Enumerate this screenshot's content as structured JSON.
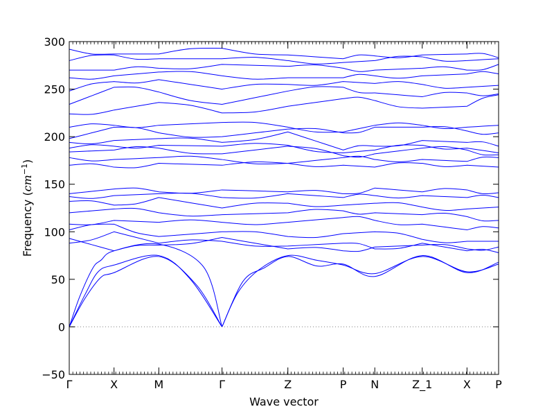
{
  "chart_data": {
    "type": "line",
    "title": "",
    "xlabel": "Wave vector",
    "ylabel": "Frequency",
    "ylabel_unit_symbol": "cm",
    "ylabel_unit_exponent": "−1",
    "ylim": [
      -50,
      300
    ],
    "yticks": [
      -50,
      0,
      50,
      100,
      150,
      200,
      250,
      300
    ],
    "ytick_labels": [
      "−50",
      "0",
      "50",
      "100",
      "150",
      "200",
      "250",
      "300"
    ],
    "zero_line": {
      "y": 0,
      "style": "dotted",
      "color": "#808080"
    },
    "grid": false,
    "legend": "none",
    "line_color": "#0000ff",
    "high_symmetry_points": [
      {
        "label": "Γ",
        "x": 0.0
      },
      {
        "label": "X",
        "x": 0.85
      },
      {
        "label": "M",
        "x": 1.7
      },
      {
        "label": "Γ",
        "x": 2.9
      },
      {
        "label": "Z",
        "x": 4.15
      },
      {
        "label": "P",
        "x": 5.2
      },
      {
        "label": "N",
        "x": 5.8
      },
      {
        "label": "Z_1",
        "x": 6.7
      },
      {
        "label": "X",
        "x": 7.55
      },
      {
        "label": "P",
        "x": 8.15
      }
    ],
    "acoustic_branches": [
      {
        "name": "",
        "x": [
          0.0,
          0.3,
          0.55,
          0.85,
          1.7,
          2.3,
          2.9
        ],
        "y": [
          0,
          34,
          58,
          65,
          75,
          50,
          0
        ]
      },
      {
        "name": "",
        "x": [
          0.0,
          0.3,
          0.6,
          0.85,
          1.7,
          2.4,
          2.9
        ],
        "y": [
          0,
          30,
          52,
          57,
          74,
          45,
          0
        ]
      },
      {
        "name": "",
        "x": [
          0.0,
          0.2,
          0.45,
          0.6,
          0.85,
          1.7,
          2.55,
          2.9
        ],
        "y": [
          0,
          32,
          62,
          70,
          80,
          87,
          63,
          0
        ]
      },
      {
        "name": "",
        "x": [
          2.9,
          3.2,
          3.6,
          4.15,
          4.7,
          5.2,
          5.8,
          6.7,
          7.55,
          8.15
        ],
        "y": [
          0,
          36,
          60,
          75,
          70,
          65,
          56,
          74,
          58,
          66
        ]
      },
      {
        "name": "",
        "x": [
          2.9,
          3.3,
          3.7,
          4.15,
          4.7,
          5.2,
          5.8,
          6.7,
          7.55,
          8.15
        ],
        "y": [
          0,
          48,
          62,
          74,
          64,
          66,
          53,
          75,
          57,
          68
        ]
      }
    ],
    "optical_branches": [
      {
        "name": "",
        "values": [
          88,
          100,
          88,
          90,
          85,
          88,
          82,
          88,
          80,
          78
        ]
      },
      {
        "name": "",
        "values": [
          93,
          80,
          86,
          94,
          82,
          80,
          84,
          86,
          82,
          84
        ]
      },
      {
        "name": "",
        "values": [
          102,
          108,
          95,
          100,
          95,
          98,
          100,
          92,
          90,
          90
        ]
      },
      {
        "name": "",
        "values": [
          108,
          112,
          110,
          110,
          110,
          115,
          112,
          108,
          102,
          104
        ]
      },
      {
        "name": "",
        "values": [
          120,
          124,
          120,
          118,
          120,
          122,
          120,
          118,
          116,
          112
        ]
      },
      {
        "name": "",
        "values": [
          132,
          128,
          136,
          125,
          130,
          128,
          130,
          126,
          124,
          126
        ]
      },
      {
        "name": "",
        "values": [
          137,
          138,
          140,
          136,
          140,
          136,
          138,
          138,
          136,
          136
        ]
      },
      {
        "name": "",
        "values": [
          140,
          145,
          142,
          144,
          142,
          140,
          146,
          142,
          144,
          141
        ]
      },
      {
        "name": "",
        "values": [
          170,
          168,
          172,
          170,
          172,
          170,
          168,
          172,
          170,
          168
        ]
      },
      {
        "name": "",
        "values": [
          178,
          176,
          178,
          176,
          172,
          178,
          176,
          176,
          174,
          178
        ]
      },
      {
        "name": "",
        "values": [
          184,
          186,
          188,
          182,
          190,
          180,
          182,
          188,
          186,
          181
        ]
      },
      {
        "name": "",
        "values": [
          188,
          190,
          191,
          190,
          191,
          183,
          186,
          191,
          188,
          183
        ]
      },
      {
        "name": "",
        "values": [
          194,
          196,
          198,
          194,
          205,
          186,
          190,
          196,
          194,
          190
        ]
      },
      {
        "name": "",
        "values": [
          198,
          210,
          204,
          200,
          208,
          204,
          210,
          210,
          206,
          204
        ]
      },
      {
        "name": "",
        "values": [
          210,
          212,
          212,
          215,
          210,
          205,
          212,
          212,
          210,
          212
        ]
      },
      {
        "name": "",
        "values": [
          224,
          228,
          236,
          225,
          232,
          240,
          238,
          230,
          232,
          244
        ]
      },
      {
        "name": "",
        "values": [
          234,
          252,
          247,
          234,
          248,
          252,
          246,
          242,
          246,
          245
        ]
      },
      {
        "name": "",
        "values": [
          248,
          258,
          260,
          250,
          255,
          258,
          256,
          255,
          252,
          254
        ]
      },
      {
        "name": "",
        "values": [
          262,
          264,
          268,
          264,
          262,
          262,
          264,
          264,
          266,
          266
        ]
      },
      {
        "name": "",
        "values": [
          270,
          270,
          272,
          276,
          274,
          272,
          270,
          272,
          270,
          276
        ]
      },
      {
        "name": "",
        "values": [
          280,
          286,
          282,
          282,
          280,
          278,
          280,
          284,
          280,
          282
        ]
      },
      {
        "name": "",
        "values": [
          292,
          287,
          287,
          293,
          286,
          282,
          285,
          286,
          287,
          283
        ]
      }
    ]
  }
}
